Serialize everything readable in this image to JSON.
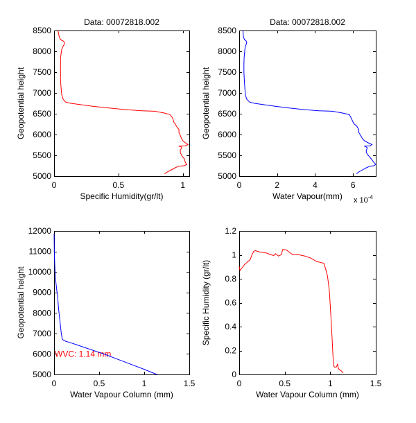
{
  "chart_data": [
    {
      "type": "line",
      "title": "Data: 00072818.002",
      "xlabel": "Specific Humidity(gr/lt)",
      "ylabel": "Geopotential height",
      "xlim": [
        0,
        1.05
      ],
      "ylim": [
        5000,
        8500
      ],
      "xticks": [
        0,
        0.5,
        1
      ],
      "xtick_labels": [
        "0",
        "0.5",
        "1"
      ],
      "yticks": [
        5000,
        5500,
        6000,
        6500,
        7000,
        7500,
        8000,
        8500
      ],
      "ytick_labels": [
        "5000",
        "5500",
        "6000",
        "6500",
        "7000",
        "7500",
        "8000",
        "8500"
      ],
      "grid": false,
      "series": [
        {
          "name": "specific-humidity-profile",
          "color": "#ff0000",
          "x": [
            0.86,
            0.88,
            0.91,
            0.94,
            0.97,
            1.01,
            1.03,
            1.02,
            1.01,
            0.99,
            0.98,
            0.98,
            0.99,
            0.99,
            0.97,
            1.02,
            1.04,
            1.02,
            1.0,
            0.99,
            0.98,
            0.97,
            0.97,
            0.95,
            0.94,
            0.93,
            0.92,
            0.9,
            0.85,
            0.78,
            0.68,
            0.55,
            0.42,
            0.3,
            0.2,
            0.13,
            0.09,
            0.07,
            0.06,
            0.055,
            0.05,
            0.05,
            0.05,
            0.05,
            0.055,
            0.06,
            0.07,
            0.08,
            0.08,
            0.07,
            0.05,
            0.04,
            0.03
          ],
          "y": [
            5060,
            5100,
            5150,
            5200,
            5240,
            5250,
            5280,
            5330,
            5420,
            5500,
            5570,
            5620,
            5680,
            5700,
            5720,
            5730,
            5760,
            5800,
            5850,
            5900,
            5980,
            6050,
            6120,
            6200,
            6260,
            6300,
            6400,
            6480,
            6520,
            6560,
            6570,
            6600,
            6640,
            6680,
            6720,
            6750,
            6780,
            6850,
            6950,
            7100,
            7300,
            7500,
            7700,
            7850,
            7950,
            8050,
            8120,
            8180,
            8220,
            8250,
            8280,
            8350,
            8500
          ]
        }
      ]
    },
    {
      "type": "line",
      "title": "Data: 00072818.002",
      "xlabel": "Water Vapour(mm)",
      "x_multiplier_label": "x 10",
      "x_multiplier_exponent": "-4",
      "ylabel": "Geopotential height",
      "xlim": [
        0,
        7.2
      ],
      "ylim": [
        5000,
        8500
      ],
      "xticks": [
        0,
        2,
        4,
        6
      ],
      "xtick_labels": [
        "0",
        "2",
        "4",
        "6"
      ],
      "yticks": [
        5000,
        5500,
        6000,
        6500,
        7000,
        7500,
        8000,
        8500
      ],
      "ytick_labels": [
        "5000",
        "5500",
        "6000",
        "6500",
        "7000",
        "7500",
        "8000",
        "8500"
      ],
      "grid": false,
      "series": [
        {
          "name": "water-vapour-profile",
          "color": "#0000ff",
          "x": [
            6.2,
            6.3,
            6.5,
            6.7,
            6.9,
            7.1,
            7.2,
            7.1,
            6.95,
            6.8,
            6.7,
            6.7,
            6.75,
            6.7,
            6.6,
            6.9,
            7.0,
            6.8,
            6.6,
            6.5,
            6.4,
            6.3,
            6.3,
            6.2,
            6.05,
            6.0,
            5.9,
            5.8,
            5.4,
            4.9,
            4.2,
            3.4,
            2.6,
            1.9,
            1.25,
            0.8,
            0.55,
            0.4,
            0.33,
            0.3,
            0.27,
            0.25,
            0.25,
            0.26,
            0.28,
            0.3,
            0.33,
            0.38,
            0.4,
            0.36,
            0.28,
            0.22,
            0.2
          ],
          "y": [
            5060,
            5100,
            5150,
            5200,
            5240,
            5250,
            5280,
            5330,
            5420,
            5500,
            5570,
            5620,
            5680,
            5700,
            5720,
            5730,
            5760,
            5800,
            5850,
            5900,
            5980,
            6050,
            6120,
            6200,
            6260,
            6300,
            6400,
            6480,
            6520,
            6560,
            6570,
            6600,
            6640,
            6680,
            6720,
            6750,
            6780,
            6850,
            6950,
            7100,
            7300,
            7500,
            7700,
            7850,
            7950,
            8050,
            8120,
            8180,
            8220,
            8250,
            8280,
            8350,
            8500
          ]
        }
      ]
    },
    {
      "type": "line",
      "title": "",
      "xlabel": "Water Vapour Column (mm)",
      "ylabel": "Geopotential height",
      "xlim": [
        0,
        1.5
      ],
      "ylim": [
        5000,
        12000
      ],
      "xticks": [
        0,
        0.5,
        1,
        1.5
      ],
      "xtick_labels": [
        "0",
        "0.5",
        "1",
        "1.5"
      ],
      "yticks": [
        5000,
        6000,
        7000,
        8000,
        9000,
        10000,
        11000,
        12000
      ],
      "ytick_labels": [
        "5000",
        "6000",
        "7000",
        "8000",
        "9000",
        "10000",
        "11000",
        "12000"
      ],
      "grid": false,
      "annotation": {
        "text": "WVC: 1.14 mm",
        "x": 0.0,
        "y": 6000,
        "color": "#ff0000"
      },
      "series": [
        {
          "name": "water-vapour-column",
          "color": "#0000ff",
          "x": [
            1.14,
            1.0,
            0.85,
            0.7,
            0.55,
            0.45,
            0.35,
            0.25,
            0.18,
            0.13,
            0.1,
            0.09,
            0.08,
            0.07,
            0.06,
            0.05,
            0.045,
            0.04,
            0.03,
            0.02,
            0.01,
            0.01,
            0.005,
            0.002,
            0.0
          ],
          "y": [
            5000,
            5250,
            5500,
            5750,
            6000,
            6150,
            6300,
            6450,
            6550,
            6620,
            6680,
            6750,
            7000,
            7400,
            7800,
            8200,
            8500,
            8800,
            9100,
            9500,
            10000,
            10100,
            10600,
            11000,
            11850
          ]
        }
      ]
    },
    {
      "type": "line",
      "title": "",
      "xlabel": "Water Vapour Column (mm)",
      "ylabel": "Specific Humidity (gr/lt)",
      "xlim": [
        0,
        1.5
      ],
      "ylim": [
        0,
        1.2
      ],
      "xticks": [
        0,
        0.5,
        1,
        1.5
      ],
      "xtick_labels": [
        "0",
        "0.5",
        "1",
        "1.5"
      ],
      "yticks": [
        0,
        0.2,
        0.4,
        0.6,
        0.8,
        1.0,
        1.2
      ],
      "ytick_labels": [
        "0",
        "0.2",
        "0.4",
        "0.6",
        "0.8",
        "1",
        "1.2"
      ],
      "grid": false,
      "series": [
        {
          "name": "humidity-vs-column",
          "color": "#ff0000",
          "x": [
            0.0,
            0.01,
            0.03,
            0.06,
            0.09,
            0.12,
            0.14,
            0.16,
            0.18,
            0.22,
            0.3,
            0.35,
            0.38,
            0.4,
            0.43,
            0.46,
            0.48,
            0.52,
            0.58,
            0.66,
            0.72,
            0.78,
            0.85,
            0.9,
            0.93,
            0.95,
            0.97,
            0.99,
            1.0,
            1.01,
            1.02,
            1.03,
            1.035,
            1.04,
            1.05,
            1.07,
            1.08,
            1.09,
            1.1,
            1.12,
            1.14
          ],
          "y": [
            0.9,
            0.87,
            0.89,
            0.92,
            0.94,
            0.96,
            1.0,
            1.03,
            1.035,
            1.025,
            1.015,
            1.0,
            0.995,
            1.01,
            0.99,
            1.0,
            1.045,
            1.04,
            1.005,
            1.0,
            0.99,
            0.975,
            0.945,
            0.935,
            0.93,
            0.88,
            0.82,
            0.7,
            0.58,
            0.45,
            0.3,
            0.15,
            0.1,
            0.07,
            0.06,
            0.065,
            0.085,
            0.05,
            0.04,
            0.03,
            0.015
          ]
        }
      ]
    }
  ]
}
